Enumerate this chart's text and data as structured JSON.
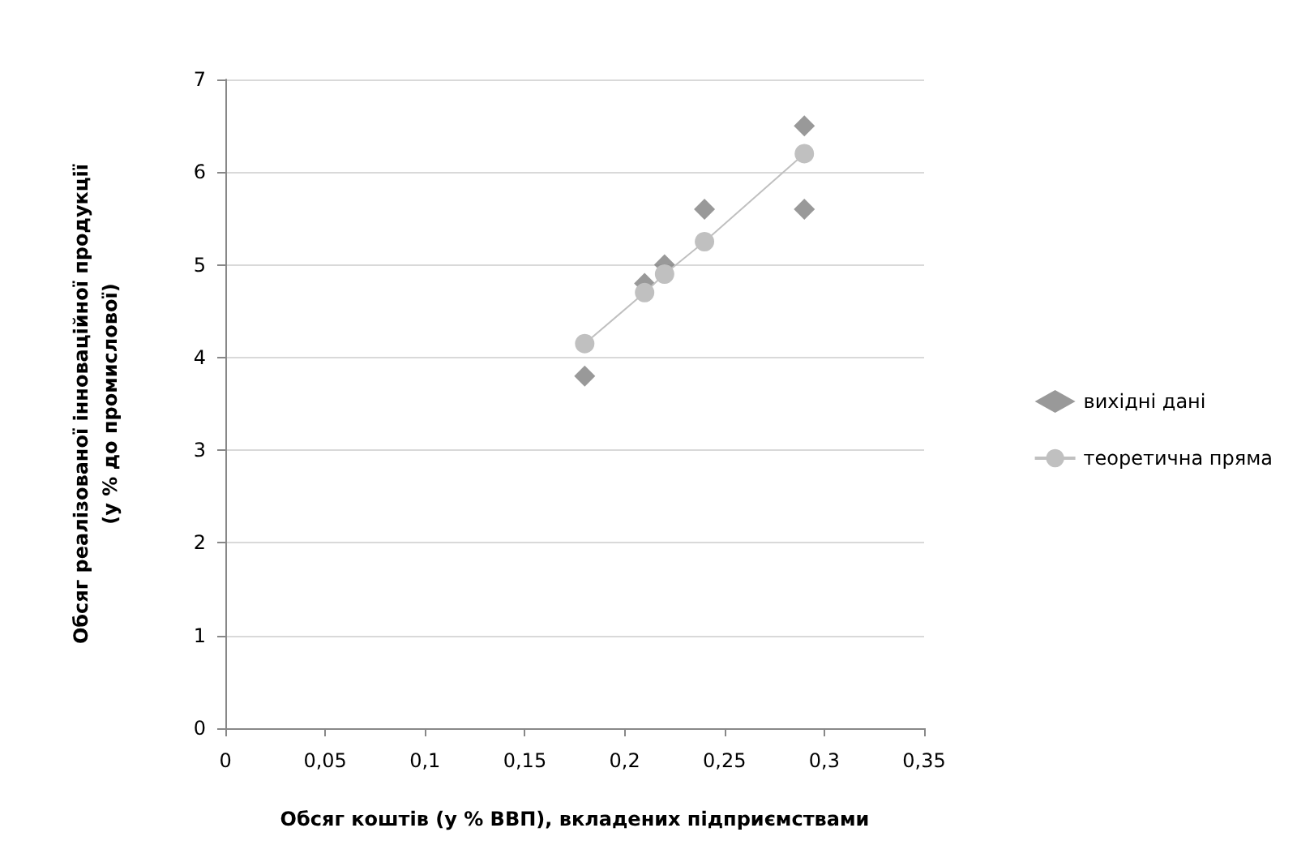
{
  "chart_data": {
    "type": "scatter",
    "xlabel": "Обсяг коштів (у % ВВП), вкладених підприємствами",
    "ylabel": "Обсяг реалізованої інноваційної продукції\n(у % до промислової)",
    "series": [
      {
        "name": "вихідні дані",
        "marker": "diamond",
        "color": "#7f7f7f",
        "x": [
          0.18,
          0.21,
          0.22,
          0.24,
          0.29,
          0.29
        ],
        "values": [
          3.8,
          4.8,
          5.0,
          5.6,
          6.5,
          5.6
        ]
      },
      {
        "name": "теоретична пряма",
        "type": "line",
        "marker": "circle",
        "color": "#c0c0c0",
        "x": [
          0.18,
          0.21,
          0.22,
          0.24,
          0.29
        ],
        "values": [
          4.15,
          4.7,
          4.9,
          5.25,
          6.2
        ]
      }
    ],
    "xlim": [
      0,
      0.35
    ],
    "xticks": [
      0,
      {
        "value": 0.05,
        "label": "0,05"
      },
      {
        "value": 0.1,
        "label": "0,1"
      },
      {
        "value": 0.15,
        "label": "0,15"
      },
      {
        "value": 0.2,
        "label": "0,2"
      },
      {
        "value": 0.25,
        "label": "0,25"
      },
      {
        "value": 0.3,
        "label": "0,3"
      },
      {
        "value": 0.35,
        "label": "0,35"
      }
    ],
    "ylim": [
      0,
      7
    ],
    "yticks": [
      0,
      1,
      2,
      3,
      4,
      5,
      6,
      7
    ],
    "grid": "y",
    "legend": "right"
  }
}
